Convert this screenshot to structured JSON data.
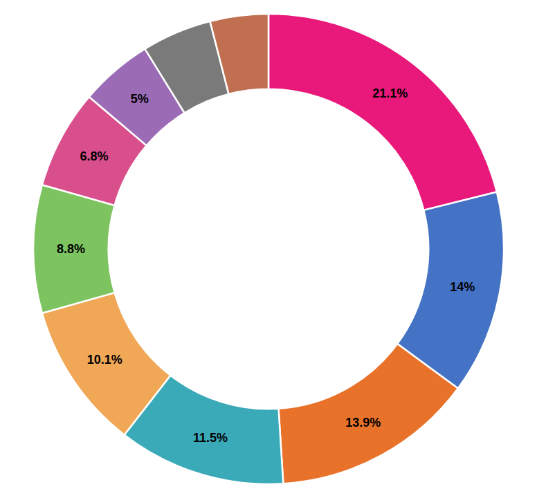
{
  "chart_data": {
    "type": "donut",
    "values": [
      21.1,
      14.0,
      13.9,
      11.5,
      10.1,
      8.8,
      6.8,
      5.0,
      4.8,
      4.0
    ],
    "value_labels": [
      "21.1%",
      "14%",
      "13.9%",
      "11.5%",
      "10.1%",
      "8.8%",
      "6.8%",
      "5%",
      null,
      null
    ],
    "colors": [
      "#E8197A",
      "#4472C4",
      "#E8722A",
      "#3BAAB8",
      "#F0A857",
      "#7DC460",
      "#D94F8C",
      "#9B6BB5",
      "#7A7A7A",
      "#C07050"
    ],
    "data_labels": true
  }
}
